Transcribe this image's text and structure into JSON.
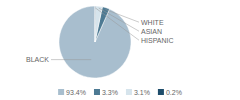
{
  "chart_data": {
    "type": "pie",
    "categories": [
      "BLACK",
      "WHITE",
      "ASIAN",
      "HISPANIC"
    ],
    "values": [
      93.4,
      3.3,
      3.1,
      0.2
    ],
    "value_labels": [
      "93.4%",
      "3.3%",
      "3.1%",
      "0.2%"
    ],
    "colors": [
      "#a8bece",
      "#4d7a93",
      "#d6e4ec",
      "#1e4d6b"
    ],
    "legend": "bottom"
  }
}
